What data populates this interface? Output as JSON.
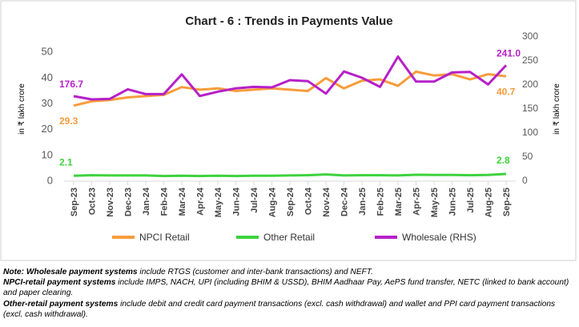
{
  "chart_data": {
    "type": "line",
    "title": "Chart - 6 : Trends in Payments Value",
    "y_axis_label": "in ₹ lakh crore",
    "y2_axis_label": "in ₹ lakh crore",
    "categories": [
      "Sep-23",
      "Oct-23",
      "Nov-23",
      "Dec-23",
      "Jan-24",
      "Feb-24",
      "Mar-24",
      "Apr-24",
      "May-24",
      "Jun-24",
      "Jul-24",
      "Aug-24",
      "Sep-24",
      "Oct-24",
      "Nov-24",
      "Dec-24",
      "Jan-25",
      "Feb-25",
      "Mar-25",
      "Apr-25",
      "May-25",
      "Jun-25",
      "Jul-25",
      "Aug-25",
      "Sep-25"
    ],
    "ylim": [
      0,
      56
    ],
    "yticks": [
      0,
      10,
      20,
      30,
      40,
      50
    ],
    "y2lim": [
      0,
      300
    ],
    "y2ticks": [
      0,
      50,
      100,
      150,
      200,
      250,
      300
    ],
    "legend": "bottom",
    "series": [
      {
        "name": "NPCI Retail",
        "color": "#f79c3c",
        "axis": "y",
        "values": [
          29.3,
          31,
          31.5,
          32.5,
          33,
          33.5,
          36.5,
          35.5,
          36,
          35,
          35.5,
          36,
          35.5,
          35,
          40,
          36,
          39,
          39.5,
          37,
          42.5,
          41,
          41.5,
          39.5,
          41.5,
          40.7
        ],
        "value_labels": [
          "29.3",
          null,
          null,
          null,
          null,
          null,
          null,
          null,
          null,
          null,
          null,
          null,
          null,
          null,
          null,
          null,
          null,
          null,
          null,
          null,
          null,
          null,
          null,
          null,
          "40.7"
        ]
      },
      {
        "name": "Other Retail",
        "color": "#3ed23e",
        "axis": "y",
        "values": [
          2.1,
          2.3,
          2.2,
          2.2,
          2.2,
          2.0,
          2.1,
          2.0,
          2.1,
          2.0,
          2.1,
          2.1,
          2.2,
          2.3,
          2.6,
          2.2,
          2.3,
          2.3,
          2.2,
          2.5,
          2.4,
          2.4,
          2.3,
          2.4,
          2.8
        ],
        "value_labels": [
          "2.1",
          null,
          null,
          null,
          null,
          null,
          null,
          null,
          null,
          null,
          null,
          null,
          null,
          null,
          null,
          null,
          null,
          null,
          null,
          null,
          null,
          null,
          null,
          null,
          "2.8"
        ]
      },
      {
        "name": "Wholesale (RHS)",
        "color": "#b620c8",
        "axis": "y2",
        "values": [
          176.7,
          170,
          171,
          191,
          181,
          181,
          222,
          177,
          186,
          193,
          196,
          195,
          210,
          208,
          182,
          228,
          215,
          196,
          259,
          207,
          207,
          226,
          227,
          201,
          241
        ],
        "value_labels": [
          "176.7",
          null,
          null,
          null,
          null,
          null,
          null,
          null,
          null,
          null,
          null,
          null,
          null,
          null,
          null,
          null,
          null,
          null,
          null,
          null,
          null,
          null,
          null,
          null,
          "241.0"
        ]
      }
    ]
  },
  "notes": [
    {
      "label": "Note: Wholesale payment systems",
      "text": " include RTGS (customer and inter-bank transactions) and NEFT."
    },
    {
      "label": "NPCI-retail payment systems",
      "text": " include IMPS, NACH, UPI (including BHIM & USSD), BHIM Aadhaar Pay, AePS fund transfer, NETC (linked to bank account) and paper clearing."
    },
    {
      "label": "Other-retail payment systems",
      "text": " include debit and credit card payment transactions (excl. cash withdrawal) and wallet and PPI card payment transactions (excl. cash withdrawal)."
    }
  ]
}
